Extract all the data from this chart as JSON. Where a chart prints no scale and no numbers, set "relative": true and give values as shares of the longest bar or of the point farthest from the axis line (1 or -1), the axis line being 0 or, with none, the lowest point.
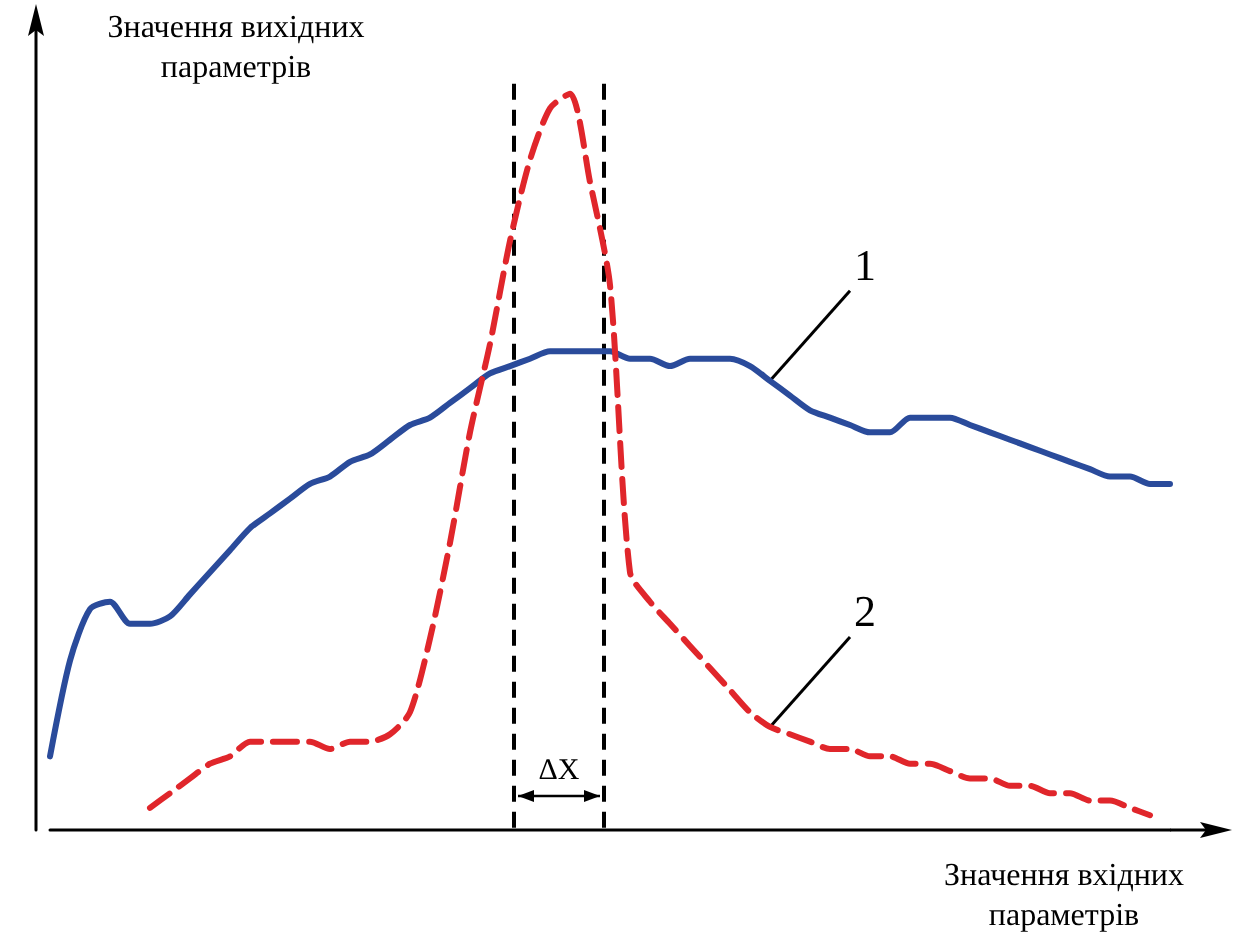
{
  "chart_data": {
    "type": "line",
    "relative": true,
    "ylabel": "Значення вихідних параметрів",
    "xlabel": "Значення вхідних параметрів",
    "categories": [
      null,
      null,
      null,
      null,
      null,
      null,
      null,
      null,
      null,
      null,
      null,
      null,
      null,
      null,
      null,
      null,
      null,
      null,
      null,
      null,
      null,
      null,
      null,
      null,
      null,
      null,
      null,
      null,
      null,
      null,
      null,
      null,
      null,
      null,
      null,
      null,
      null,
      null,
      null,
      null,
      null,
      null,
      null,
      null,
      null,
      null,
      null,
      null,
      null,
      null,
      null,
      null,
      null,
      null,
      null,
      null,
      null
    ],
    "series": [
      {
        "name": "1",
        "color": "#2a4b9b",
        "line_style": "solid",
        "values": [
          0.1,
          0.23,
          0.3,
          0.31,
          0.28,
          0.28,
          0.29,
          0.32,
          0.35,
          0.38,
          0.41,
          0.43,
          0.45,
          0.47,
          0.48,
          0.5,
          0.51,
          0.53,
          0.55,
          0.56,
          0.58,
          0.6,
          0.62,
          0.63,
          0.64,
          0.65,
          0.65,
          0.65,
          0.65,
          0.64,
          0.64,
          0.63,
          0.64,
          0.64,
          0.64,
          0.63,
          0.61,
          0.59,
          0.57,
          0.56,
          0.55,
          0.54,
          0.54,
          0.56,
          0.56,
          0.56,
          0.55,
          0.54,
          0.53,
          0.52,
          0.51,
          0.5,
          0.49,
          0.48,
          0.48,
          0.47,
          0.47
        ]
      },
      {
        "name": "2",
        "color": "#e0262b",
        "line_style": "dashed",
        "values": [
          null,
          null,
          null,
          null,
          null,
          0.03,
          0.05,
          0.07,
          0.09,
          0.1,
          0.12,
          0.12,
          0.12,
          0.12,
          0.11,
          0.12,
          0.12,
          0.13,
          0.16,
          0.26,
          0.39,
          0.54,
          0.66,
          0.8,
          0.91,
          0.98,
          1.0,
          0.88,
          0.74,
          0.35,
          0.31,
          0.28,
          0.25,
          0.22,
          0.19,
          0.16,
          0.14,
          0.13,
          0.12,
          0.11,
          0.11,
          0.1,
          0.1,
          0.09,
          0.09,
          0.08,
          0.07,
          0.07,
          0.06,
          0.06,
          0.05,
          0.05,
          0.04,
          0.04,
          0.03,
          0.02,
          null
        ]
      }
    ],
    "annotations": [
      "ΔX"
    ],
    "grid": false,
    "legend": false,
    "marker": "none"
  }
}
